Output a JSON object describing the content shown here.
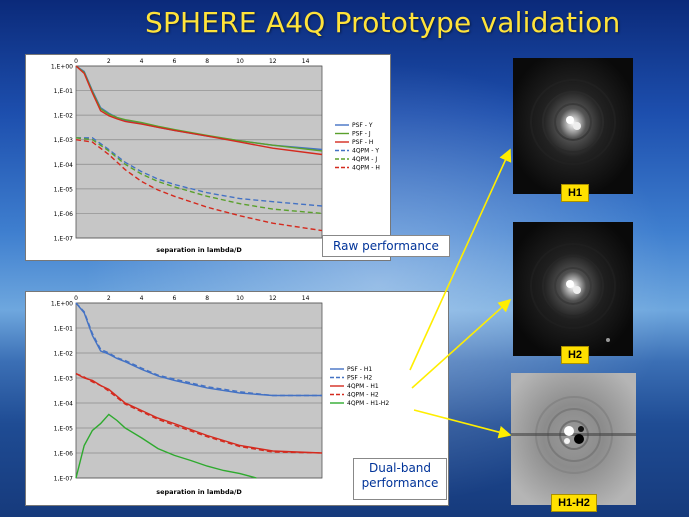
{
  "slide": {
    "title": "SPHERE A4Q Prototype validation"
  },
  "chart_data": [
    {
      "type": "line",
      "x_label": "separation in lambda/D",
      "xlim": [
        0,
        15
      ],
      "x_ticks": [
        "0",
        "2",
        "4",
        "6",
        "8",
        "10",
        "12",
        "14"
      ],
      "y_scale": "log",
      "ylim": [
        1e-07,
        1
      ],
      "y_ticks": [
        "1,E+00",
        "1,E-01",
        "1,E-02",
        "1,E-03",
        "1,E-04",
        "1,E-05",
        "1,E-06",
        "1,E-07"
      ],
      "legend_position": "right",
      "annotation": "Raw performance",
      "series": [
        {
          "name": "PSF - Y",
          "color": "#4472c4",
          "dash": false,
          "x": [
            0,
            0.5,
            1,
            1.5,
            2,
            2.5,
            3,
            4,
            5,
            6,
            8,
            10,
            12,
            15
          ],
          "y": [
            1,
            0.6,
            0.1,
            0.02,
            0.012,
            0.008,
            0.006,
            0.0045,
            0.0032,
            0.0024,
            0.0014,
            0.0009,
            0.0006,
            0.0004
          ]
        },
        {
          "name": "PSF - J",
          "color": "#5aa02c",
          "dash": false,
          "x": [
            0,
            0.5,
            1,
            1.5,
            2,
            2.5,
            3,
            4,
            5,
            6,
            8,
            10,
            12,
            15
          ],
          "y": [
            1,
            0.55,
            0.09,
            0.018,
            0.011,
            0.008,
            0.0065,
            0.005,
            0.0035,
            0.0026,
            0.0015,
            0.0009,
            0.0006,
            0.00035
          ]
        },
        {
          "name": "PSF - H",
          "color": "#d42a1e",
          "dash": false,
          "x": [
            0,
            0.5,
            1,
            1.5,
            2,
            2.5,
            3,
            4,
            5,
            6,
            8,
            10,
            12,
            15
          ],
          "y": [
            1,
            0.5,
            0.08,
            0.015,
            0.0095,
            0.007,
            0.0055,
            0.0043,
            0.0032,
            0.0024,
            0.0014,
            0.0008,
            0.00045,
            0.00025
          ]
        },
        {
          "name": "4QPM - Y",
          "color": "#4472c4",
          "dash": true,
          "x": [
            0,
            1,
            2,
            3,
            4,
            5,
            6,
            8,
            10,
            12,
            15
          ],
          "y": [
            0.0012,
            0.0012,
            0.0004,
            0.00012,
            5e-05,
            2.5e-05,
            1.5e-05,
            7e-06,
            4e-06,
            3e-06,
            2e-06
          ]
        },
        {
          "name": "4QPM - J",
          "color": "#5aa02c",
          "dash": true,
          "x": [
            0,
            1,
            2,
            3,
            4,
            5,
            6,
            8,
            10,
            12,
            15
          ],
          "y": [
            0.0012,
            0.001,
            0.00035,
            0.0001,
            4e-05,
            2e-05,
            1.2e-05,
            5e-06,
            2.5e-06,
            1.5e-06,
            1e-06
          ]
        },
        {
          "name": "4QPM - H",
          "color": "#d42a1e",
          "dash": true,
          "x": [
            0,
            1,
            2,
            3,
            4,
            5,
            6,
            8,
            10,
            12,
            15
          ],
          "y": [
            0.001,
            0.0008,
            0.00025,
            6e-05,
            2e-05,
            9e-06,
            5e-06,
            1.8e-06,
            8e-07,
            4e-07,
            2e-07
          ]
        }
      ]
    },
    {
      "type": "line",
      "x_label": "separation in lambda/D",
      "xlim": [
        0,
        15
      ],
      "x_ticks": [
        "0",
        "2",
        "4",
        "6",
        "8",
        "10",
        "12",
        "14"
      ],
      "y_scale": "log",
      "ylim": [
        1e-07,
        1
      ],
      "y_ticks": [
        "1,E+00",
        "1,E-01",
        "1,E-02",
        "1,E-03",
        "1,E-04",
        "1,E-05",
        "1,E-06",
        "1,E-07"
      ],
      "legend_position": "right",
      "annotation_lines": [
        "Dual-band",
        "performance"
      ],
      "series": [
        {
          "name": "PSF - H1",
          "color": "#4472c4",
          "dash": false,
          "x": [
            0,
            0.5,
            1,
            1.5,
            2,
            2.5,
            3,
            4,
            5,
            6,
            8,
            10,
            12,
            15
          ],
          "y": [
            1,
            0.4,
            0.05,
            0.012,
            0.009,
            0.006,
            0.0045,
            0.0022,
            0.0012,
            0.0008,
            0.0004,
            0.00025,
            0.0002,
            0.0002
          ]
        },
        {
          "name": "PSF - H2",
          "color": "#4472c4",
          "dash": true,
          "x": [
            0,
            0.5,
            1,
            1.5,
            2,
            2.5,
            3,
            4,
            5,
            6,
            8,
            10,
            12,
            15
          ],
          "y": [
            1,
            0.45,
            0.06,
            0.014,
            0.01,
            0.0065,
            0.005,
            0.0025,
            0.0013,
            0.0009,
            0.00045,
            0.00028,
            0.0002,
            0.0002
          ]
        },
        {
          "name": "4QPM - H1",
          "color": "#d42a1e",
          "dash": false,
          "x": [
            0,
            0.5,
            1,
            1.5,
            2,
            3,
            4,
            5,
            6,
            8,
            10,
            12,
            15
          ],
          "y": [
            0.0015,
            0.001,
            0.0008,
            0.0005,
            0.00035,
            0.0001,
            5e-05,
            2.5e-05,
            1.5e-05,
            5e-06,
            2e-06,
            1.2e-06,
            1e-06
          ]
        },
        {
          "name": "4QPM - H2",
          "color": "#d42a1e",
          "dash": true,
          "x": [
            0,
            0.5,
            1,
            1.5,
            2,
            3,
            4,
            5,
            6,
            8,
            10,
            12,
            15
          ],
          "y": [
            0.0015,
            0.0011,
            0.0007,
            0.0005,
            0.0003,
            9e-05,
            4.5e-05,
            2.2e-05,
            1.3e-05,
            4.5e-06,
            1.8e-06,
            1.1e-06,
            1e-06
          ]
        },
        {
          "name": "4QPM - H1-H2",
          "color": "#2eaa2e",
          "dash": false,
          "x": [
            0,
            0.5,
            1,
            1.5,
            2,
            2.5,
            3,
            4,
            5,
            6,
            7,
            8,
            9,
            10,
            11
          ],
          "y": [
            1e-07,
            2e-06,
            8e-06,
            1.5e-05,
            3.5e-05,
            2e-05,
            1e-05,
            4e-06,
            1.5e-06,
            8e-07,
            5e-07,
            3e-07,
            2e-07,
            1.5e-07,
            1e-07
          ]
        }
      ]
    }
  ],
  "images": [
    {
      "caption": "H1"
    },
    {
      "caption": "H2"
    },
    {
      "caption": "H1-H2"
    }
  ]
}
